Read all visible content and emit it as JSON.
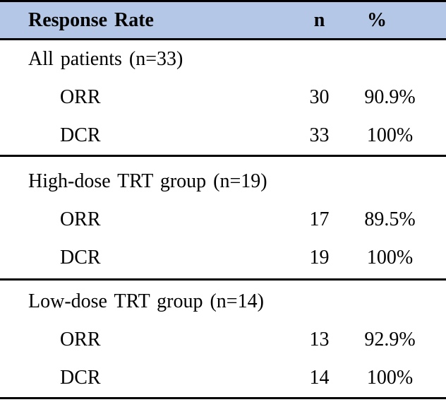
{
  "table": {
    "header": {
      "label": "Response Rate",
      "n": "n",
      "pct": "%"
    },
    "sections": [
      {
        "title": "All patients (n=33)",
        "rows": [
          {
            "label": "ORR",
            "n": "30",
            "pct": "90.9%"
          },
          {
            "label": "DCR",
            "n": "33",
            "pct": "100%"
          }
        ]
      },
      {
        "title": "High-dose TRT group (n=19)",
        "rows": [
          {
            "label": "ORR",
            "n": "17",
            "pct": "89.5%"
          },
          {
            "label": "DCR",
            "n": "19",
            "pct": "100%"
          }
        ]
      },
      {
        "title": "Low-dose TRT group (n=14)",
        "rows": [
          {
            "label": "ORR",
            "n": "13",
            "pct": "92.9%"
          },
          {
            "label": "DCR",
            "n": "14",
            "pct": "100%"
          }
        ]
      }
    ]
  },
  "colors": {
    "header_bg": "#b5c7e6",
    "rule": "#000000",
    "text": "#000000",
    "background": "#ffffff"
  }
}
